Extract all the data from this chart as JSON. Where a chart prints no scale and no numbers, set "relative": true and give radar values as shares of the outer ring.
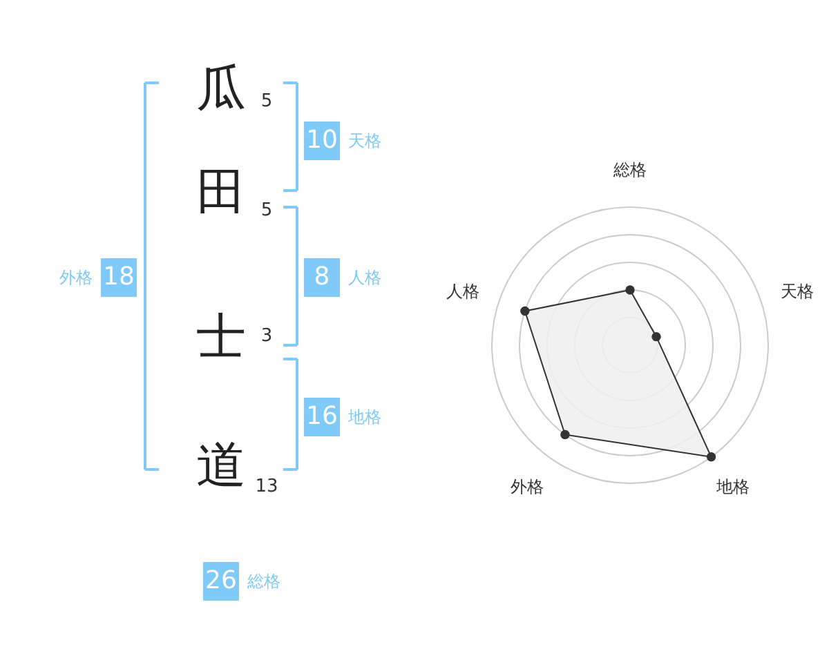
{
  "chart_data": [
    {
      "type": "other",
      "categories": [
        "瓜",
        "田",
        "士",
        "道",
        "天格",
        "人格",
        "地格",
        "外格",
        "総格"
      ],
      "values": [
        5,
        5,
        3,
        13,
        10,
        8,
        16,
        18,
        26
      ],
      "color": "#7fcaf8",
      "data_labels": true
    },
    {
      "type": "radar",
      "categories": [
        "総格",
        "天格",
        "地格",
        "外格",
        "人格"
      ],
      "relative": true,
      "grid": true,
      "marker": "circle",
      "series": [
        {
          "color": "#333333",
          "values": [
            0.4,
            0.2,
            1,
            0.8,
            0.8
          ]
        }
      ]
    }
  ]
}
